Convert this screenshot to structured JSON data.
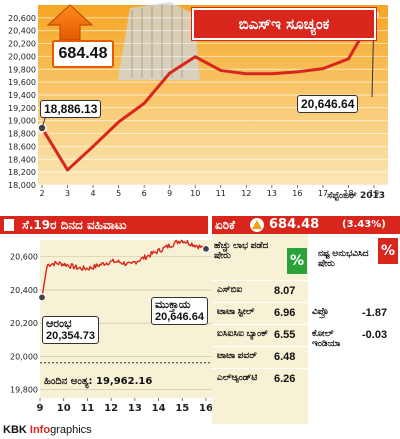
{
  "chart_data": [
    {
      "type": "line",
      "title": "ಬಿಎಸ್‌ಇ ಸೂಚ್ಯಂಕ",
      "xlabel": "ಸೆಪ್ಟೆಂಬರ್ 2013",
      "x": [
        2,
        3,
        4,
        5,
        6,
        9,
        10,
        11,
        12,
        13,
        16,
        17,
        18,
        19
      ],
      "values": [
        18886.13,
        18234,
        18600,
        18980,
        19270,
        19740,
        19995,
        19782,
        19730,
        19730,
        19760,
        19810,
        19962,
        20646.64
      ],
      "yticks": [
        18000,
        18200,
        18400,
        18600,
        18800,
        19000,
        19200,
        19400,
        19600,
        19800,
        20000,
        20200,
        20400,
        20600
      ],
      "ylim": [
        18000,
        20800
      ],
      "gain_label": "684.48",
      "start_label": "18,886.13",
      "end_label": "20,646.64"
    },
    {
      "type": "line",
      "title": "ಸೆ.19ರ ದಿನದ ವಹಿವಾಟು",
      "x_ticks": [
        9,
        10,
        11,
        12,
        13,
        14,
        15,
        16
      ],
      "yticks": [
        19800,
        20000,
        20200,
        20400,
        20600
      ],
      "ylim": [
        19750,
        20700
      ],
      "open": 20354.73,
      "close": 20646.64,
      "prev_close": 19962.16,
      "open_label": "ಆರಂಭ",
      "open_value": "20,354.73",
      "close_label": "ಮುಕ್ತಾಯ",
      "close_value": "20,646.64",
      "prev_close_text": "ಹಿಂದಿನ ಅಂತ್ಯ: 19,962.16"
    }
  ],
  "summary": {
    "label": "ಏರಿಕೆ",
    "change": "684.48",
    "percent": "(3.43%)"
  },
  "gainers": {
    "title": "ಹೆಚ್ಚು ಲಾಭ ಪಡೆದ ಷೇರು",
    "items": [
      {
        "name": "ಎಸ್‌ಬಿಐ",
        "value": "8.07"
      },
      {
        "name": "ಟಾಟಾ ಸ್ಟೀಲ್",
        "value": "6.96"
      },
      {
        "name": "ಐಸಿಐಸಿಐ ಬ್ಯಾಂಕ್",
        "value": "6.55"
      },
      {
        "name": "ಟಾಟಾ ಪವರ್",
        "value": "6.48"
      },
      {
        "name": "ಎಲ್‌ಆ್ಯಂಡ್‌ಟಿ",
        "value": "6.26"
      }
    ]
  },
  "losers": {
    "title": "ನಷ್ಟ ಅನುಭವಿಸಿದ ಷೇರು",
    "items": [
      {
        "name": "ವಿಪ್ರೊ",
        "value": "-1.87"
      },
      {
        "name": "ಕೋಲ್ ಇಂಡಿಯಾ",
        "value": "-0.03"
      }
    ]
  },
  "percent_symbol": "%",
  "credit": {
    "kbk": "KBK ",
    "info": "Info",
    "graphics": "graphics"
  },
  "colors": {
    "accent": "#d9261c",
    "gold": "#f0a21a",
    "cream": "#f7f1d6",
    "green": "#2aa33a"
  }
}
